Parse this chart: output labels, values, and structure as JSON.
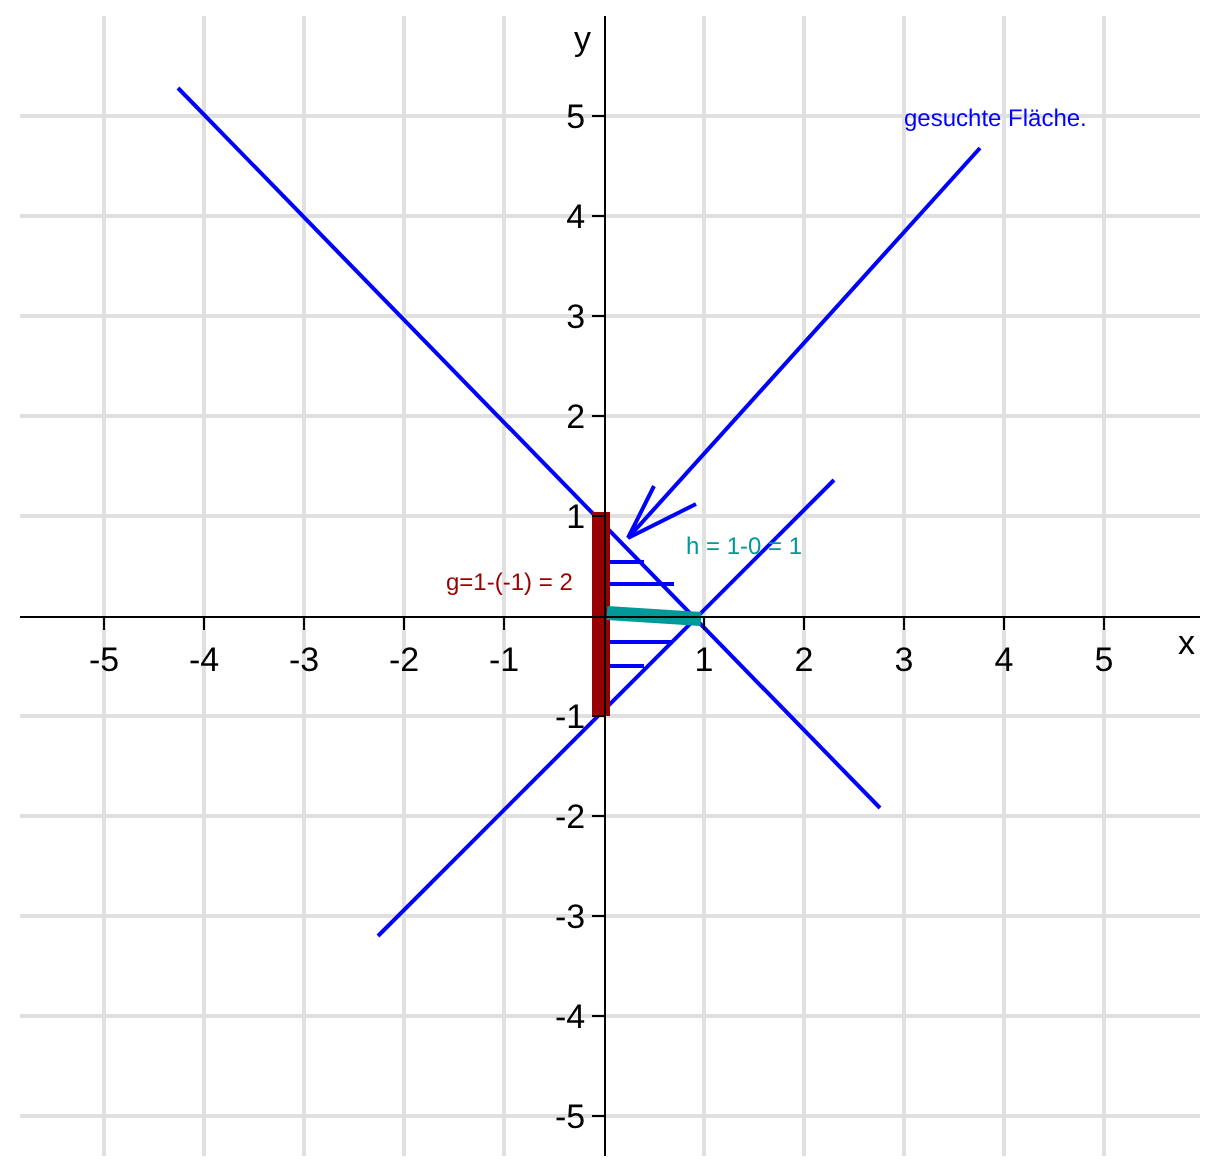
{
  "chart_data": {
    "type": "line",
    "xlabel": "x",
    "ylabel": "y",
    "xlim": [
      -5.84,
      5.96
    ],
    "ylim": [
      -5.4,
      6.0
    ],
    "xticks": [
      -5,
      -4,
      -3,
      -2,
      -1,
      1,
      2,
      3,
      4,
      5
    ],
    "yticks": [
      -5,
      -4,
      -3,
      -2,
      -1,
      1,
      2,
      3,
      4,
      5
    ],
    "grid": true,
    "marker": "none",
    "line_style": "solid",
    "series": [
      {
        "color": "#0000ff",
        "x": [
          -4.26,
          2.76
        ],
        "values": [
          5.28,
          -1.92
        ]
      },
      {
        "color": "#0000ff",
        "x": [
          -2.26,
          2.3
        ],
        "values": [
          -3.2,
          1.36
        ]
      },
      {
        "color": "#0000ff",
        "x": [
          3.76,
          0.24,
          0.5,
          null,
          0.24,
          0.92
        ],
        "values": [
          4.68,
          0.78,
          1.3,
          null,
          0.78,
          1.12
        ]
      },
      {
        "color": "#0000ff",
        "x": [
          0.03,
          0.4
        ],
        "values": [
          0.54,
          0.54
        ]
      },
      {
        "color": "#0000ff",
        "x": [
          0.03,
          0.7
        ],
        "values": [
          0.32,
          0.32
        ]
      },
      {
        "color": "#0000ff",
        "x": [
          0.03,
          0.68
        ],
        "values": [
          -0.26,
          -0.26
        ]
      },
      {
        "color": "#0000ff",
        "x": [
          0.03,
          0.4
        ],
        "values": [
          -0.5,
          -0.5
        ]
      },
      {
        "color": "#990000",
        "x": [
          -0.03,
          -0.03
        ],
        "values": [
          -1,
          1.04
        ]
      },
      {
        "color": "#009999",
        "x": [
          0.03,
          0.97
        ],
        "values": [
          0.03,
          -0.03
        ]
      }
    ],
    "annotations": [
      "gesuchte Fläche.",
      "h = 1-0 = 1",
      "g=1-(-1) = 2"
    ]
  }
}
